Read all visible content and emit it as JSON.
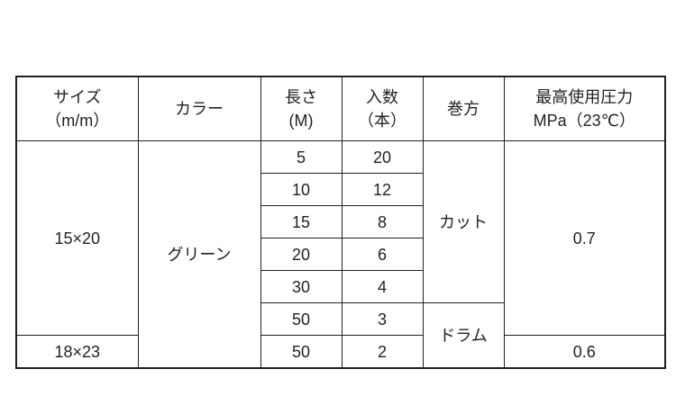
{
  "headers": {
    "size": {
      "line1": "サイズ",
      "line2": "（m/m）"
    },
    "color": "カラー",
    "length": {
      "line1": "長さ",
      "line2": "(M)"
    },
    "quantity": {
      "line1": "入数",
      "line2": "（本）"
    },
    "winding": "巻方",
    "pressure": {
      "line1": "最高使用圧力",
      "line2": "MPa（23℃）"
    }
  },
  "groups": {
    "size_a": "15×20",
    "size_b": "18×23",
    "color": "グリーン",
    "winding_cut": "カット",
    "winding_drum": "ドラム",
    "pressure_a": "0.7",
    "pressure_b": "0.6"
  },
  "rows": [
    {
      "length": "5",
      "quantity": "20"
    },
    {
      "length": "10",
      "quantity": "12"
    },
    {
      "length": "15",
      "quantity": "8"
    },
    {
      "length": "20",
      "quantity": "6"
    },
    {
      "length": "30",
      "quantity": "4"
    },
    {
      "length": "50",
      "quantity": "3"
    },
    {
      "length": "50",
      "quantity": "2"
    }
  ]
}
